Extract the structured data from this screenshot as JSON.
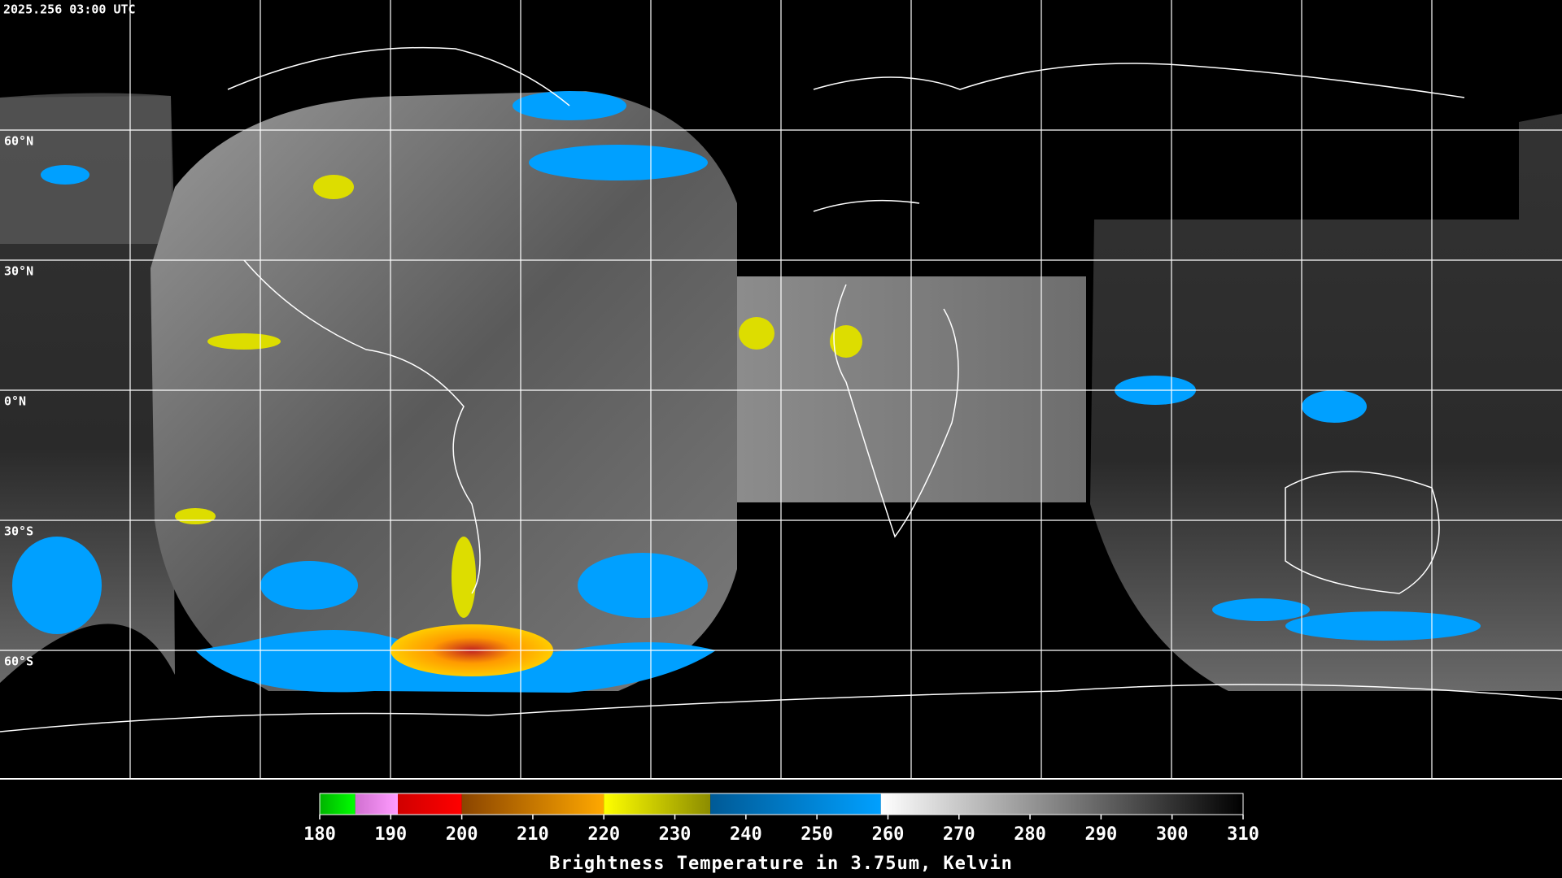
{
  "map": {
    "timestamp": "2025.256 03:00 UTC",
    "latitudes": [
      {
        "value": 60,
        "label": "60°N"
      },
      {
        "value": 30,
        "label": "30°N"
      },
      {
        "value": 0,
        "label": "0°N"
      },
      {
        "value": -30,
        "label": "30°S"
      },
      {
        "value": -60,
        "label": "60°S"
      }
    ]
  },
  "colorbar": {
    "title": "Brightness Temperature in 3.75um, Kelvin",
    "range": [
      180,
      310
    ],
    "ticks": [
      180,
      190,
      200,
      210,
      220,
      230,
      240,
      250,
      260,
      270,
      280,
      290,
      300,
      310
    ],
    "segments": [
      {
        "from": 180,
        "to": 185,
        "colors": [
          "#00b400",
          "#00ff00"
        ]
      },
      {
        "from": 185,
        "to": 191,
        "colors": [
          "#d070d0",
          "#ff9cff"
        ]
      },
      {
        "from": 191,
        "to": 200,
        "colors": [
          "#d00000",
          "#ff0000"
        ]
      },
      {
        "from": 200,
        "to": 220,
        "colors": [
          "#8a4400",
          "#ffa800"
        ]
      },
      {
        "from": 220,
        "to": 235,
        "colors": [
          "#ffff00",
          "#8c8c00"
        ]
      },
      {
        "from": 235,
        "to": 259,
        "colors": [
          "#005a96",
          "#00a0ff"
        ]
      },
      {
        "from": 259,
        "to": 310,
        "colors": [
          "#ffffff",
          "#000000"
        ]
      }
    ]
  }
}
